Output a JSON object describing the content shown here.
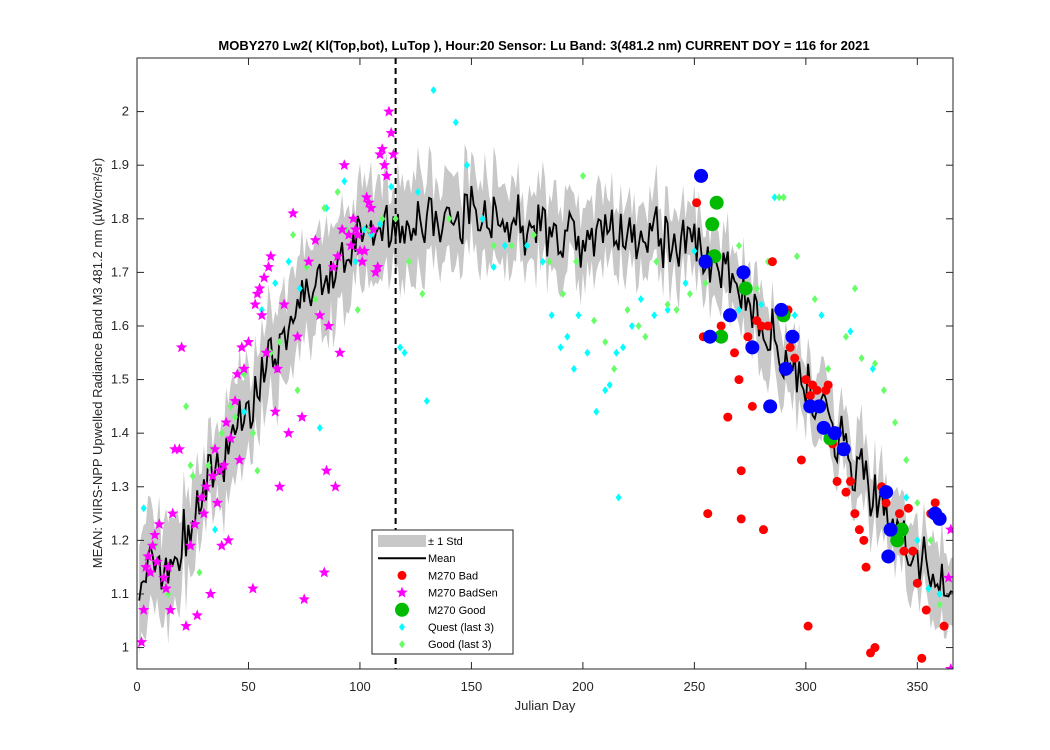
{
  "chart_data": {
    "type": "line",
    "title": "MOBY270   Lw2( Kl(Top,bot), LuTop ),   Hour:20 Sensor: Lu Band: 3(481.2 nm)   CURRENT DOY = 116 for 2021",
    "xlabel": "Julian Day",
    "ylabel": "MEAN: VIIRS-NPP Upwelled Radiance Band M3 481.2 nm (µW/cm²/sr)",
    "xlim": [
      0,
      366
    ],
    "ylim": [
      0.96,
      2.1
    ],
    "xticks": [
      0,
      50,
      100,
      150,
      200,
      250,
      300,
      350
    ],
    "yticks": [
      1,
      1.1,
      1.2,
      1.3,
      1.4,
      1.5,
      1.6,
      1.7,
      1.8,
      1.9,
      2
    ],
    "current_doy": 116,
    "legend_position": "bottom-center",
    "colors": {
      "std_band": "#c8c8c8",
      "mean": "#000000",
      "bad": "#ff0000",
      "badsen": "#ff00ff",
      "good": "#00bb00",
      "good_big_alt": "#0000ff",
      "quest": "#00ffff",
      "good_last3": "#66ff66"
    },
    "legend": [
      {
        "key": "std",
        "label": "± 1 Std"
      },
      {
        "key": "mean",
        "label": "Mean"
      },
      {
        "key": "bad",
        "label": "M270 Bad"
      },
      {
        "key": "badsen",
        "label": "M270 BadSen"
      },
      {
        "key": "good",
        "label": "M270 Good"
      },
      {
        "key": "quest",
        "label": "Quest (last 3)"
      },
      {
        "key": "goodlast3",
        "label": "Good (last 3)"
      }
    ],
    "mean_anchors": [
      [
        1,
        1.14
      ],
      [
        5,
        1.13
      ],
      [
        10,
        1.15
      ],
      [
        15,
        1.12
      ],
      [
        20,
        1.19
      ],
      [
        25,
        1.26
      ],
      [
        30,
        1.3
      ],
      [
        35,
        1.33
      ],
      [
        40,
        1.37
      ],
      [
        45,
        1.42
      ],
      [
        50,
        1.45
      ],
      [
        55,
        1.5
      ],
      [
        60,
        1.54
      ],
      [
        65,
        1.58
      ],
      [
        70,
        1.61
      ],
      [
        75,
        1.64
      ],
      [
        80,
        1.67
      ],
      [
        85,
        1.69
      ],
      [
        90,
        1.72
      ],
      [
        95,
        1.73
      ],
      [
        100,
        1.75
      ],
      [
        105,
        1.76
      ],
      [
        110,
        1.77
      ],
      [
        116,
        1.78
      ],
      [
        125,
        1.8
      ],
      [
        135,
        1.8
      ],
      [
        150,
        1.81
      ],
      [
        165,
        1.79
      ],
      [
        180,
        1.78
      ],
      [
        195,
        1.77
      ],
      [
        210,
        1.77
      ],
      [
        225,
        1.77
      ],
      [
        240,
        1.77
      ],
      [
        250,
        1.76
      ],
      [
        258,
        1.72
      ],
      [
        265,
        1.7
      ],
      [
        272,
        1.66
      ],
      [
        280,
        1.61
      ],
      [
        288,
        1.56
      ],
      [
        295,
        1.52
      ],
      [
        302,
        1.47
      ],
      [
        310,
        1.42
      ],
      [
        318,
        1.37
      ],
      [
        325,
        1.32
      ],
      [
        332,
        1.27
      ],
      [
        340,
        1.22
      ],
      [
        348,
        1.17
      ],
      [
        355,
        1.14
      ],
      [
        360,
        1.11
      ],
      [
        366,
        1.1
      ]
    ],
    "std_anchors": [
      [
        1,
        0.09
      ],
      [
        30,
        0.07
      ],
      [
        60,
        0.08
      ],
      [
        90,
        0.08
      ],
      [
        116,
        0.08
      ],
      [
        150,
        0.07
      ],
      [
        200,
        0.06
      ],
      [
        250,
        0.06
      ],
      [
        300,
        0.06
      ],
      [
        330,
        0.06
      ],
      [
        366,
        0.06
      ]
    ],
    "m270_bad": [
      [
        251,
        1.83
      ],
      [
        254,
        1.58
      ],
      [
        256,
        1.25
      ],
      [
        262,
        1.6
      ],
      [
        265,
        1.43
      ],
      [
        268,
        1.55
      ],
      [
        270,
        1.5
      ],
      [
        271,
        1.24
      ],
      [
        271,
        1.33
      ],
      [
        274,
        1.58
      ],
      [
        276,
        1.45
      ],
      [
        278,
        1.61
      ],
      [
        280,
        1.6
      ],
      [
        281,
        1.22
      ],
      [
        283,
        1.6
      ],
      [
        285,
        1.72
      ],
      [
        288,
        1.63
      ],
      [
        292,
        1.63
      ],
      [
        293,
        1.56
      ],
      [
        295,
        1.54
      ],
      [
        298,
        1.35
      ],
      [
        300,
        1.5
      ],
      [
        301,
        1.04
      ],
      [
        302,
        1.47
      ],
      [
        303,
        1.49
      ],
      [
        305,
        1.48
      ],
      [
        307,
        1.45
      ],
      [
        309,
        1.48
      ],
      [
        310,
        1.49
      ],
      [
        312,
        1.38
      ],
      [
        314,
        1.31
      ],
      [
        318,
        1.29
      ],
      [
        320,
        1.31
      ],
      [
        322,
        1.25
      ],
      [
        324,
        1.22
      ],
      [
        326,
        1.2
      ],
      [
        327,
        1.15
      ],
      [
        329,
        0.99
      ],
      [
        331,
        1.0
      ],
      [
        334,
        1.3
      ],
      [
        336,
        1.27
      ],
      [
        340,
        1.22
      ],
      [
        342,
        1.25
      ],
      [
        344,
        1.18
      ],
      [
        346,
        1.26
      ],
      [
        348,
        1.18
      ],
      [
        350,
        1.12
      ],
      [
        352,
        0.98
      ],
      [
        354,
        1.07
      ],
      [
        356,
        1.25
      ],
      [
        358,
        1.27
      ],
      [
        362,
        1.04
      ]
    ],
    "m270_badsen": [
      [
        2,
        1.01
      ],
      [
        3,
        1.07
      ],
      [
        4,
        1.15
      ],
      [
        5,
        1.17
      ],
      [
        6,
        1.14
      ],
      [
        7,
        1.19
      ],
      [
        8,
        1.21
      ],
      [
        9,
        1.16
      ],
      [
        10,
        1.23
      ],
      [
        12,
        1.13
      ],
      [
        13,
        1.11
      ],
      [
        14,
        1.15
      ],
      [
        15,
        1.07
      ],
      [
        16,
        1.25
      ],
      [
        17,
        1.37
      ],
      [
        19,
        1.37
      ],
      [
        20,
        1.56
      ],
      [
        22,
        1.04
      ],
      [
        24,
        1.19
      ],
      [
        26,
        1.23
      ],
      [
        27,
        1.06
      ],
      [
        29,
        1.28
      ],
      [
        30,
        1.25
      ],
      [
        31,
        1.3
      ],
      [
        33,
        1.1
      ],
      [
        34,
        1.32
      ],
      [
        35,
        1.37
      ],
      [
        36,
        1.27
      ],
      [
        37,
        1.33
      ],
      [
        38,
        1.19
      ],
      [
        39,
        1.34
      ],
      [
        40,
        1.42
      ],
      [
        41,
        1.2
      ],
      [
        42,
        1.39
      ],
      [
        44,
        1.46
      ],
      [
        45,
        1.51
      ],
      [
        46,
        1.35
      ],
      [
        47,
        1.56
      ],
      [
        48,
        1.52
      ],
      [
        50,
        1.57
      ],
      [
        52,
        1.11
      ],
      [
        53,
        1.64
      ],
      [
        54,
        1.66
      ],
      [
        55,
        1.67
      ],
      [
        56,
        1.62
      ],
      [
        57,
        1.69
      ],
      [
        58,
        1.55
      ],
      [
        59,
        1.71
      ],
      [
        60,
        1.73
      ],
      [
        62,
        1.44
      ],
      [
        63,
        1.52
      ],
      [
        64,
        1.3
      ],
      [
        66,
        1.64
      ],
      [
        68,
        1.4
      ],
      [
        70,
        1.81
      ],
      [
        72,
        1.58
      ],
      [
        74,
        1.43
      ],
      [
        75,
        1.09
      ],
      [
        77,
        1.72
      ],
      [
        80,
        1.76
      ],
      [
        82,
        1.62
      ],
      [
        84,
        1.14
      ],
      [
        85,
        1.33
      ],
      [
        86,
        1.6
      ],
      [
        88,
        1.71
      ],
      [
        89,
        1.3
      ],
      [
        90,
        1.73
      ],
      [
        91,
        1.55
      ],
      [
        92,
        1.78
      ],
      [
        93,
        1.9
      ],
      [
        95,
        1.77
      ],
      [
        96,
        1.75
      ],
      [
        97,
        1.8
      ],
      [
        98,
        1.78
      ],
      [
        99,
        1.77
      ],
      [
        100,
        1.74
      ],
      [
        101,
        1.72
      ],
      [
        102,
        1.74
      ],
      [
        103,
        1.84
      ],
      [
        104,
        1.83
      ],
      [
        105,
        1.82
      ],
      [
        106,
        1.78
      ],
      [
        107,
        1.7
      ],
      [
        108,
        1.71
      ],
      [
        109,
        1.92
      ],
      [
        110,
        1.93
      ],
      [
        111,
        1.9
      ],
      [
        112,
        1.88
      ],
      [
        113,
        2.0
      ],
      [
        114,
        1.96
      ],
      [
        115,
        1.92
      ],
      [
        365,
        1.22
      ],
      [
        365,
        0.96
      ],
      [
        364,
        1.13
      ]
    ],
    "m270_good": [
      [
        258,
        1.79
      ],
      [
        259,
        1.73
      ],
      [
        260,
        1.83
      ],
      [
        262,
        1.58
      ],
      [
        273,
        1.67
      ],
      [
        290,
        1.62
      ],
      [
        311,
        1.39
      ],
      [
        341,
        1.2
      ],
      [
        343,
        1.22
      ]
    ],
    "m270_good_blue": [
      [
        253,
        1.88
      ],
      [
        255,
        1.72
      ],
      [
        257,
        1.58
      ],
      [
        266,
        1.62
      ],
      [
        272,
        1.7
      ],
      [
        276,
        1.56
      ],
      [
        284,
        1.45
      ],
      [
        289,
        1.63
      ],
      [
        291,
        1.52
      ],
      [
        294,
        1.58
      ],
      [
        302,
        1.45
      ],
      [
        306,
        1.45
      ],
      [
        308,
        1.41
      ],
      [
        313,
        1.4
      ],
      [
        317,
        1.37
      ],
      [
        336,
        1.29
      ],
      [
        337,
        1.17
      ],
      [
        338,
        1.22
      ],
      [
        358,
        1.25
      ],
      [
        360,
        1.24
      ]
    ],
    "quest_last3": [
      [
        3,
        1.26
      ],
      [
        35,
        1.22
      ],
      [
        48,
        1.44
      ],
      [
        56,
        1.63
      ],
      [
        62,
        1.68
      ],
      [
        68,
        1.72
      ],
      [
        73,
        1.67
      ],
      [
        82,
        1.41
      ],
      [
        85,
        1.82
      ],
      [
        93,
        1.87
      ],
      [
        98,
        1.72
      ],
      [
        102,
        1.78
      ],
      [
        105,
        1.77
      ],
      [
        109,
        1.79
      ],
      [
        114,
        1.86
      ],
      [
        118,
        1.56
      ],
      [
        120,
        1.55
      ],
      [
        126,
        1.85
      ],
      [
        130,
        1.46
      ],
      [
        133,
        2.04
      ],
      [
        143,
        1.98
      ],
      [
        148,
        1.9
      ],
      [
        155,
        1.8
      ],
      [
        160,
        1.71
      ],
      [
        165,
        1.75
      ],
      [
        175,
        1.75
      ],
      [
        182,
        1.72
      ],
      [
        186,
        1.62
      ],
      [
        190,
        1.56
      ],
      [
        193,
        1.58
      ],
      [
        196,
        1.52
      ],
      [
        198,
        1.62
      ],
      [
        202,
        1.55
      ],
      [
        206,
        1.44
      ],
      [
        210,
        1.48
      ],
      [
        212,
        1.49
      ],
      [
        215,
        1.55
      ],
      [
        216,
        1.28
      ],
      [
        218,
        1.56
      ],
      [
        222,
        1.6
      ],
      [
        226,
        1.65
      ],
      [
        232,
        1.62
      ],
      [
        238,
        1.63
      ],
      [
        246,
        1.68
      ],
      [
        250,
        1.74
      ],
      [
        270,
        1.63
      ],
      [
        280,
        1.64
      ],
      [
        286,
        1.84
      ],
      [
        290,
        1.84
      ],
      [
        295,
        1.62
      ],
      [
        307,
        1.62
      ],
      [
        320,
        1.59
      ],
      [
        330,
        1.52
      ],
      [
        345,
        1.28
      ],
      [
        350,
        1.2
      ],
      [
        355,
        1.11
      ],
      [
        360,
        1.1
      ]
    ],
    "good_last3": [
      [
        8,
        1.19
      ],
      [
        14,
        1.1
      ],
      [
        22,
        1.45
      ],
      [
        24,
        1.34
      ],
      [
        25,
        1.32
      ],
      [
        28,
        1.14
      ],
      [
        32,
        1.34
      ],
      [
        34,
        1.37
      ],
      [
        38,
        1.4
      ],
      [
        42,
        1.45
      ],
      [
        44,
        1.43
      ],
      [
        48,
        1.51
      ],
      [
        52,
        1.4
      ],
      [
        54,
        1.33
      ],
      [
        60,
        1.55
      ],
      [
        64,
        1.57
      ],
      [
        70,
        1.77
      ],
      [
        72,
        1.48
      ],
      [
        76,
        1.71
      ],
      [
        80,
        1.65
      ],
      [
        84,
        1.82
      ],
      [
        90,
        1.85
      ],
      [
        94,
        1.78
      ],
      [
        99,
        1.63
      ],
      [
        104,
        1.78
      ],
      [
        110,
        1.8
      ],
      [
        116,
        1.8
      ],
      [
        122,
        1.72
      ],
      [
        128,
        1.66
      ],
      [
        140,
        1.8
      ],
      [
        160,
        1.75
      ],
      [
        168,
        1.75
      ],
      [
        178,
        1.77
      ],
      [
        185,
        1.72
      ],
      [
        191,
        1.66
      ],
      [
        197,
        1.72
      ],
      [
        200,
        1.88
      ],
      [
        205,
        1.61
      ],
      [
        210,
        1.57
      ],
      [
        214,
        1.52
      ],
      [
        220,
        1.63
      ],
      [
        225,
        1.6
      ],
      [
        228,
        1.58
      ],
      [
        233,
        1.72
      ],
      [
        238,
        1.64
      ],
      [
        242,
        1.63
      ],
      [
        248,
        1.66
      ],
      [
        255,
        1.68
      ],
      [
        270,
        1.75
      ],
      [
        278,
        1.67
      ],
      [
        283,
        1.72
      ],
      [
        288,
        1.84
      ],
      [
        290,
        1.84
      ],
      [
        296,
        1.73
      ],
      [
        304,
        1.65
      ],
      [
        310,
        1.52
      ],
      [
        318,
        1.58
      ],
      [
        322,
        1.67
      ],
      [
        325,
        1.54
      ],
      [
        331,
        1.53
      ],
      [
        335,
        1.48
      ],
      [
        340,
        1.42
      ],
      [
        345,
        1.35
      ],
      [
        350,
        1.27
      ],
      [
        356,
        1.2
      ],
      [
        360,
        1.08
      ],
      [
        364,
        1.13
      ]
    ]
  }
}
